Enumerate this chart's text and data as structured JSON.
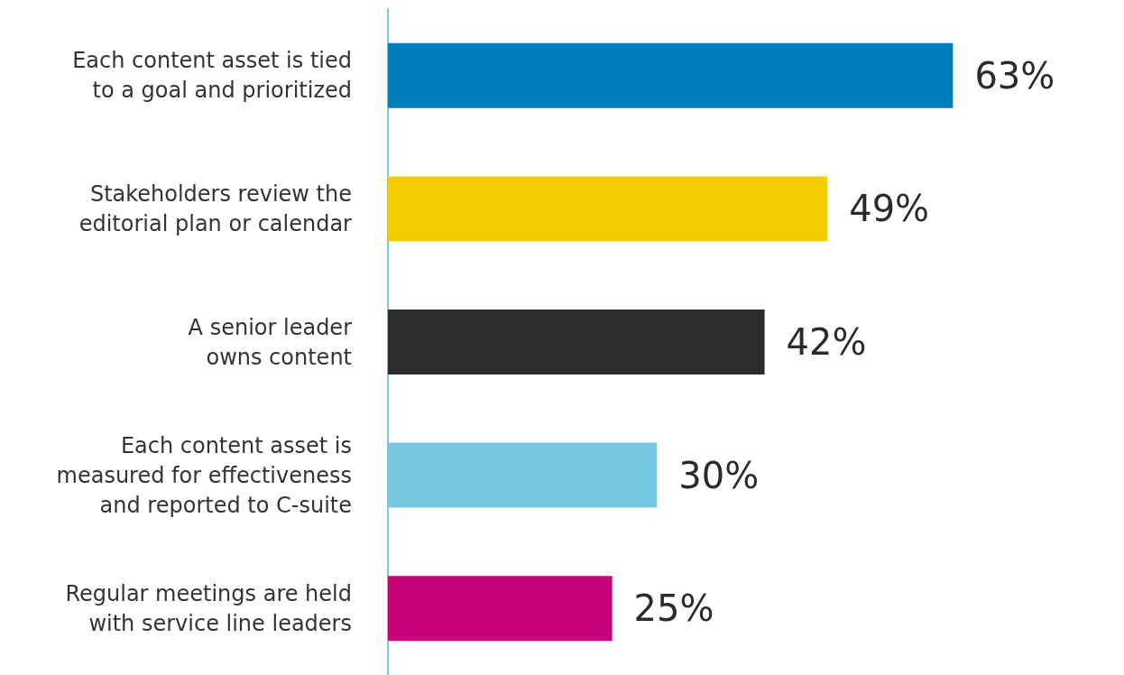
{
  "chart_data": {
    "type": "bar",
    "orientation": "horizontal",
    "categories": [
      "Each content asset is tied\nto a goal and prioritized",
      "Stakeholders review the\neditorial plan or calendar",
      "A senior leader\nowns content",
      "Each content asset is\nmeasured for effectiveness\nand reported to C-suite",
      "Regular meetings are held\nwith service line leaders"
    ],
    "values": [
      63,
      49,
      42,
      30,
      25
    ],
    "colors": [
      "#007dbc",
      "#f3cd00",
      "#2a2e2a",
      "#76c7e2",
      "#c5047a"
    ],
    "value_labels": [
      "63%",
      "49%",
      "42%",
      "30%",
      "25%"
    ]
  }
}
